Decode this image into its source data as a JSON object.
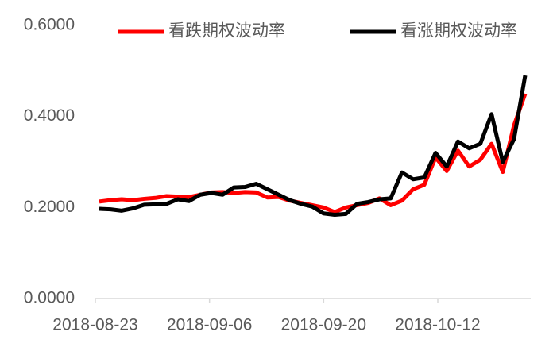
{
  "chart_data": {
    "type": "line",
    "categories": [
      "2018-08-23",
      null,
      null,
      null,
      null,
      null,
      null,
      null,
      null,
      null,
      "2018-09-06",
      null,
      null,
      null,
      null,
      null,
      null,
      null,
      null,
      null,
      "2018-09-20",
      null,
      null,
      null,
      null,
      null,
      null,
      null,
      null,
      null,
      "2018-10-12",
      null,
      null,
      null,
      null,
      null,
      null,
      null,
      null
    ],
    "series": [
      {
        "name": "看跌期权波动率",
        "color": "#ff0000",
        "values": [
          0.213,
          0.216,
          0.218,
          0.216,
          0.219,
          0.221,
          0.225,
          0.224,
          0.223,
          0.228,
          0.233,
          0.234,
          0.232,
          0.234,
          0.233,
          0.222,
          0.223,
          0.215,
          0.21,
          0.205,
          0.2,
          0.19,
          0.2,
          0.205,
          0.21,
          0.22,
          0.205,
          0.215,
          0.24,
          0.25,
          0.31,
          0.28,
          0.325,
          0.29,
          0.305,
          0.34,
          0.278,
          0.38,
          0.45
        ]
      },
      {
        "name": "看涨期权波动率",
        "color": "#000000",
        "values": [
          0.197,
          0.196,
          0.193,
          0.198,
          0.206,
          0.207,
          0.208,
          0.218,
          0.214,
          0.228,
          0.232,
          0.228,
          0.244,
          0.245,
          0.252,
          0.24,
          0.228,
          0.216,
          0.208,
          0.202,
          0.187,
          0.184,
          0.186,
          0.208,
          0.212,
          0.218,
          0.22,
          0.277,
          0.262,
          0.266,
          0.32,
          0.29,
          0.345,
          0.33,
          0.34,
          0.405,
          0.3,
          0.35,
          0.49
        ]
      }
    ],
    "ylim": [
      0,
      0.6
    ],
    "yticks": [
      {
        "value": 0,
        "label": "0.0000"
      },
      {
        "value": 0.2,
        "label": "0.2000"
      },
      {
        "value": 0.4,
        "label": "0.4000"
      },
      {
        "value": 0.6,
        "label": "0.6000"
      }
    ],
    "grid": false,
    "legend": "top"
  }
}
